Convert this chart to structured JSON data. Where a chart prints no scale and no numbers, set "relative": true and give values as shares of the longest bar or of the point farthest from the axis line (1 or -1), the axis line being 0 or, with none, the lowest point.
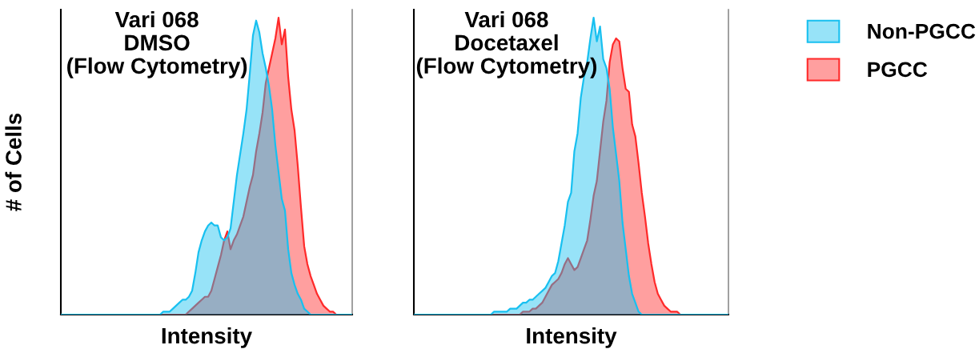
{
  "chart_data": [
    {
      "type": "area",
      "title": "Vari 068\nDMSO\n(Flow Cytometry)",
      "xlabel": "Intensity",
      "ylabel": "# of Cells",
      "relative": true,
      "legend": "top right",
      "categories": [
        null,
        null,
        null,
        null,
        null,
        null,
        null,
        null,
        null,
        null,
        null,
        null,
        null,
        null,
        null,
        null,
        null,
        null,
        null,
        null,
        null,
        null,
        null,
        null,
        null,
        null,
        null,
        null,
        null,
        null,
        null,
        null,
        null,
        null,
        null,
        null,
        null,
        null,
        null,
        null,
        null,
        null,
        null,
        null,
        null,
        null,
        null,
        null,
        null,
        null,
        null,
        null,
        null,
        null,
        null,
        null,
        null,
        null,
        null,
        null,
        null,
        null,
        null,
        null,
        null,
        null,
        null,
        null,
        null,
        null,
        null,
        null,
        null,
        null,
        null,
        null,
        null,
        null,
        null,
        null,
        null,
        null,
        null,
        null,
        null,
        null,
        null,
        null,
        null,
        null,
        null,
        null
      ],
      "series": [
        {
          "name": "Non-PGCC",
          "color": "#18c0f0",
          "values": [
            0,
            0,
            0,
            0,
            0,
            0,
            0,
            0,
            0,
            0,
            0,
            0,
            0,
            0,
            0,
            0,
            0,
            0,
            0,
            0,
            0,
            0,
            0,
            0,
            0,
            0,
            0,
            0,
            0,
            0,
            0,
            0,
            0.01,
            0.01,
            0.01,
            0.02,
            0.03,
            0.04,
            0.05,
            0.05,
            0.06,
            0.08,
            0.14,
            0.21,
            0.25,
            0.28,
            0.3,
            0.31,
            0.3,
            0.3,
            0.26,
            0.25,
            0.26,
            0.29,
            0.38,
            0.47,
            0.54,
            0.61,
            0.69,
            0.81,
            0.94,
            0.99,
            0.95,
            0.88,
            0.83,
            0.77,
            0.69,
            0.57,
            0.48,
            0.39,
            0.35,
            0.22,
            0.14,
            0.1,
            0.07,
            0.05,
            0.02,
            0.01,
            0,
            0,
            0,
            0,
            0,
            0,
            0,
            0,
            0,
            0,
            0,
            0,
            0,
            0
          ]
        },
        {
          "name": "PGCC",
          "color": "#ff2a2a",
          "values": [
            0,
            0,
            0,
            0,
            0,
            0,
            0,
            0,
            0,
            0,
            0,
            0,
            0,
            0,
            0,
            0,
            0,
            0,
            0,
            0,
            0,
            0,
            0,
            0,
            0,
            0,
            0,
            0,
            0,
            0,
            0,
            0,
            0,
            0,
            0,
            0,
            0,
            0,
            0,
            0,
            0.01,
            0.02,
            0.03,
            0.04,
            0.05,
            0.06,
            0.06,
            0.08,
            0.12,
            0.16,
            0.2,
            0.25,
            0.28,
            0.22,
            0.25,
            0.27,
            0.3,
            0.33,
            0.38,
            0.43,
            0.47,
            0.55,
            0.61,
            0.68,
            0.78,
            0.83,
            0.88,
            0.93,
            1.0,
            0.91,
            0.96,
            0.8,
            0.69,
            0.62,
            0.5,
            0.36,
            0.23,
            0.17,
            0.13,
            0.1,
            0.07,
            0.05,
            0.03,
            0.02,
            0.01,
            0.01,
            0,
            0,
            0,
            0,
            0,
            0
          ]
        }
      ]
    },
    {
      "type": "area",
      "title": "Vari 068\nDocetaxel\n(Flow Cytometry)",
      "xlabel": "Intensity",
      "relative": true,
      "legend": "top right",
      "categories": [
        null,
        null,
        null,
        null,
        null,
        null,
        null,
        null,
        null,
        null,
        null,
        null,
        null,
        null,
        null,
        null,
        null,
        null,
        null,
        null,
        null,
        null,
        null,
        null,
        null,
        null,
        null,
        null,
        null,
        null,
        null,
        null,
        null,
        null,
        null,
        null,
        null,
        null,
        null,
        null,
        null,
        null,
        null,
        null,
        null,
        null,
        null,
        null,
        null,
        null,
        null,
        null,
        null,
        null,
        null,
        null,
        null,
        null,
        null,
        null,
        null,
        null,
        null,
        null,
        null,
        null,
        null,
        null,
        null,
        null,
        null,
        null,
        null,
        null,
        null,
        null,
        null,
        null,
        null,
        null,
        null,
        null,
        null,
        null,
        null,
        null,
        null,
        null,
        null,
        null,
        null,
        null,
        null,
        null,
        null,
        null,
        null,
        null,
        null
      ],
      "series": [
        {
          "name": "Non-PGCC",
          "color": "#18c0f0",
          "values": [
            0,
            0,
            0,
            0,
            0,
            0,
            0,
            0,
            0,
            0,
            0,
            0,
            0,
            0,
            0,
            0,
            0,
            0,
            0,
            0,
            0,
            0,
            0,
            0,
            0,
            0.01,
            0.01,
            0.01,
            0.01,
            0.01,
            0.02,
            0.02,
            0.02,
            0.03,
            0.04,
            0.04,
            0.05,
            0.05,
            0.06,
            0.07,
            0.08,
            0.09,
            0.11,
            0.13,
            0.14,
            0.18,
            0.24,
            0.3,
            0.38,
            0.41,
            0.55,
            0.61,
            0.73,
            0.8,
            0.85,
            0.93,
            1.0,
            0.92,
            0.97,
            0.86,
            0.83,
            0.76,
            0.63,
            0.54,
            0.45,
            0.31,
            0.22,
            0.13,
            0.07,
            0.04,
            0.01,
            0,
            0,
            0,
            0,
            0,
            0,
            0,
            0,
            0,
            0,
            0,
            0,
            0,
            0,
            0,
            0,
            0,
            0,
            0,
            0,
            0,
            0,
            0,
            0,
            0,
            0,
            0,
            0
          ]
        },
        {
          "name": "PGCC",
          "color": "#ff2a2a",
          "values": [
            0,
            0,
            0,
            0,
            0,
            0,
            0,
            0,
            0,
            0,
            0,
            0,
            0,
            0,
            0,
            0,
            0,
            0,
            0,
            0,
            0,
            0,
            0,
            0,
            0,
            0,
            0,
            0,
            0,
            0,
            0,
            0,
            0,
            0,
            0.01,
            0.01,
            0.01,
            0.02,
            0.02,
            0.03,
            0.04,
            0.06,
            0.08,
            0.1,
            0.11,
            0.12,
            0.14,
            0.17,
            0.19,
            0.17,
            0.15,
            0.16,
            0.19,
            0.22,
            0.25,
            0.32,
            0.4,
            0.45,
            0.55,
            0.65,
            0.72,
            0.85,
            0.91,
            0.93,
            0.92,
            0.83,
            0.76,
            0.75,
            0.64,
            0.6,
            0.51,
            0.41,
            0.33,
            0.24,
            0.17,
            0.11,
            0.07,
            0.05,
            0.03,
            0.02,
            0.01,
            0.01,
            0.01,
            0,
            0,
            0,
            0,
            0,
            0,
            0,
            0,
            0,
            0,
            0,
            0,
            0,
            0,
            0,
            0
          ]
        }
      ]
    }
  ]
}
